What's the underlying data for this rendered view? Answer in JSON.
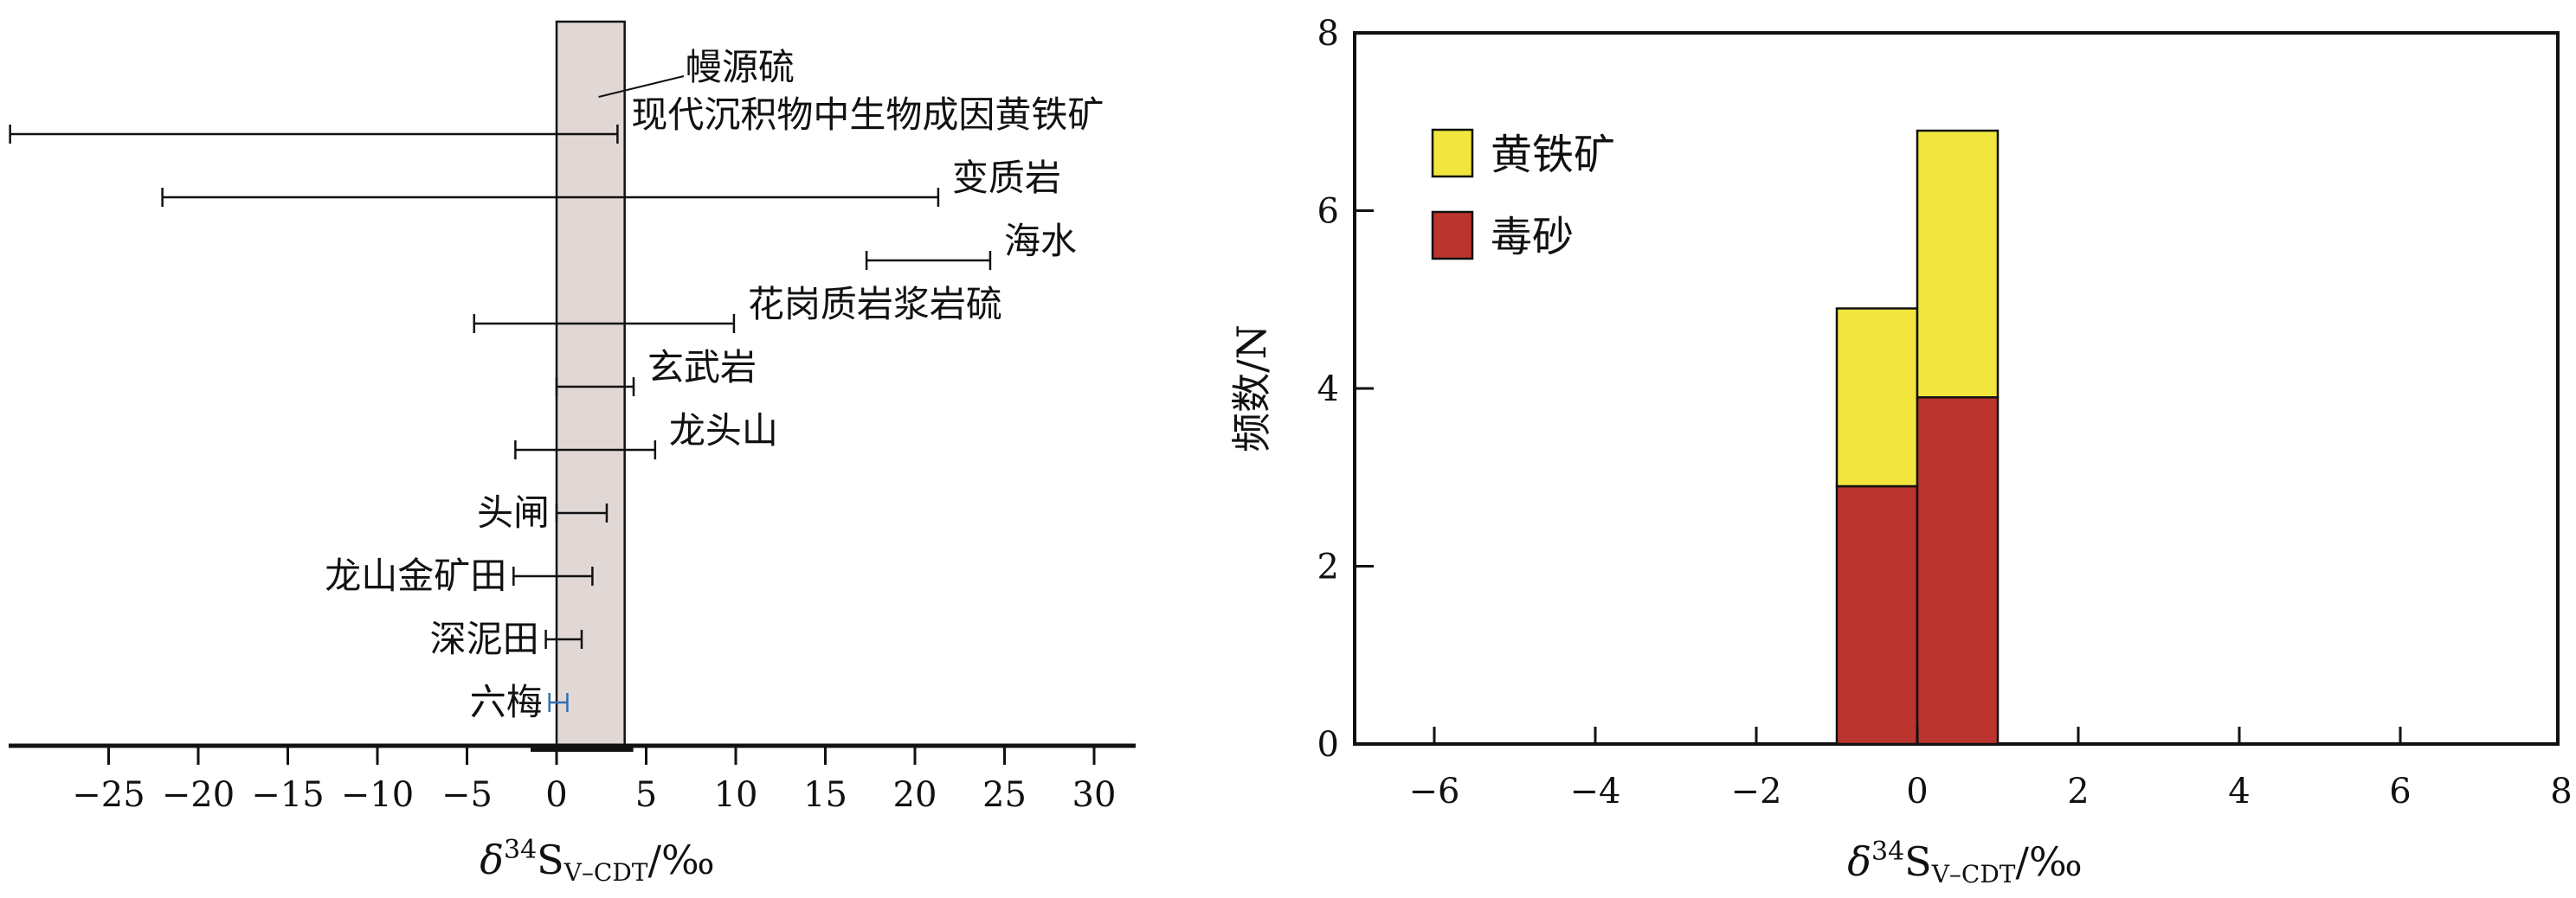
{
  "chart_data": [
    {
      "type": "range",
      "xlabel": {
        "main": "δ",
        "sup": "34",
        "base": "S",
        "sub": "V–CDT",
        "unit": "/‰"
      },
      "xlim": [
        -31,
        33
      ],
      "xticks": [
        {
          "value": -25,
          "label": "−25"
        },
        {
          "value": -20,
          "label": "−20"
        },
        {
          "value": -15,
          "label": "−15"
        },
        {
          "value": -10,
          "label": "−10"
        },
        {
          "value": -5,
          "label": "−5"
        },
        {
          "value": 0,
          "label": "0"
        },
        {
          "value": 5,
          "label": "5"
        },
        {
          "value": 10,
          "label": "10"
        },
        {
          "value": 15,
          "label": "15"
        },
        {
          "value": 20,
          "label": "20"
        },
        {
          "value": 25,
          "label": "25"
        },
        {
          "value": 30,
          "label": "30"
        }
      ],
      "band": {
        "label": "幔源硫",
        "range": [
          0,
          3.8
        ],
        "color": "#e1d8d6"
      },
      "ranges": [
        {
          "label": "现代沉积物中生物成因黄铁矿",
          "min": -30.5,
          "max": 3.4,
          "label_side": "right",
          "color": "#111111"
        },
        {
          "label": "变质岩",
          "min": -22,
          "max": 21.3,
          "label_side": "right",
          "color": "#111111"
        },
        {
          "label": "海水",
          "min": 17.3,
          "max": 24.2,
          "label_side": "right",
          "color": "#111111"
        },
        {
          "label": "花岗质岩浆岩硫",
          "min": -4.6,
          "max": 9.9,
          "label_side": "right",
          "color": "#111111"
        },
        {
          "label": "玄武岩",
          "min": 0,
          "max": 4.3,
          "label_side": "right",
          "color": "#111111"
        },
        {
          "label": "龙头山",
          "min": -2.3,
          "max": 5.5,
          "label_side": "right",
          "color": "#111111"
        },
        {
          "label": "头闸",
          "min": 0,
          "max": 2.8,
          "label_side": "left",
          "color": "#111111"
        },
        {
          "label": "龙山金矿田",
          "min": -2.4,
          "max": 2,
          "label_side": "left",
          "color": "#111111"
        },
        {
          "label": "深泥田",
          "min": -0.6,
          "max": 1.4,
          "label_side": "left",
          "color": "#111111"
        },
        {
          "label": "六梅",
          "min": -0.4,
          "max": 0.6,
          "label_side": "left",
          "color": "#2e6fb3"
        }
      ]
    },
    {
      "type": "bar",
      "stacked": true,
      "xlabel": {
        "main": "δ",
        "sup": "34",
        "base": "S",
        "sub": "V–CDT",
        "unit": "/‰"
      },
      "ylabel": "频数/N",
      "xlim": [
        -7,
        8
      ],
      "ylim": [
        0,
        8
      ],
      "xticks": [
        {
          "value": -6,
          "label": "−6"
        },
        {
          "value": -4,
          "label": "−4"
        },
        {
          "value": -2,
          "label": "−2"
        },
        {
          "value": 0,
          "label": "0"
        },
        {
          "value": 2,
          "label": "2"
        },
        {
          "value": 4,
          "label": "4"
        },
        {
          "value": 6,
          "label": "6"
        },
        {
          "value": 8,
          "label": "8"
        }
      ],
      "yticks": [
        {
          "value": 0,
          "label": "0"
        },
        {
          "value": 2,
          "label": "2"
        },
        {
          "value": 4,
          "label": "4"
        },
        {
          "value": 6,
          "label": "6"
        },
        {
          "value": 8,
          "label": "8"
        }
      ],
      "bins": [
        [
          -1,
          0
        ],
        [
          0,
          1
        ]
      ],
      "series": [
        {
          "name": "毒砂",
          "values": [
            2.9,
            3.9
          ],
          "color": "#bb342d"
        },
        {
          "name": "黄铁矿",
          "values": [
            2.0,
            3.0
          ],
          "color": "#f2e63e"
        }
      ],
      "legend_position": "top-left"
    }
  ]
}
